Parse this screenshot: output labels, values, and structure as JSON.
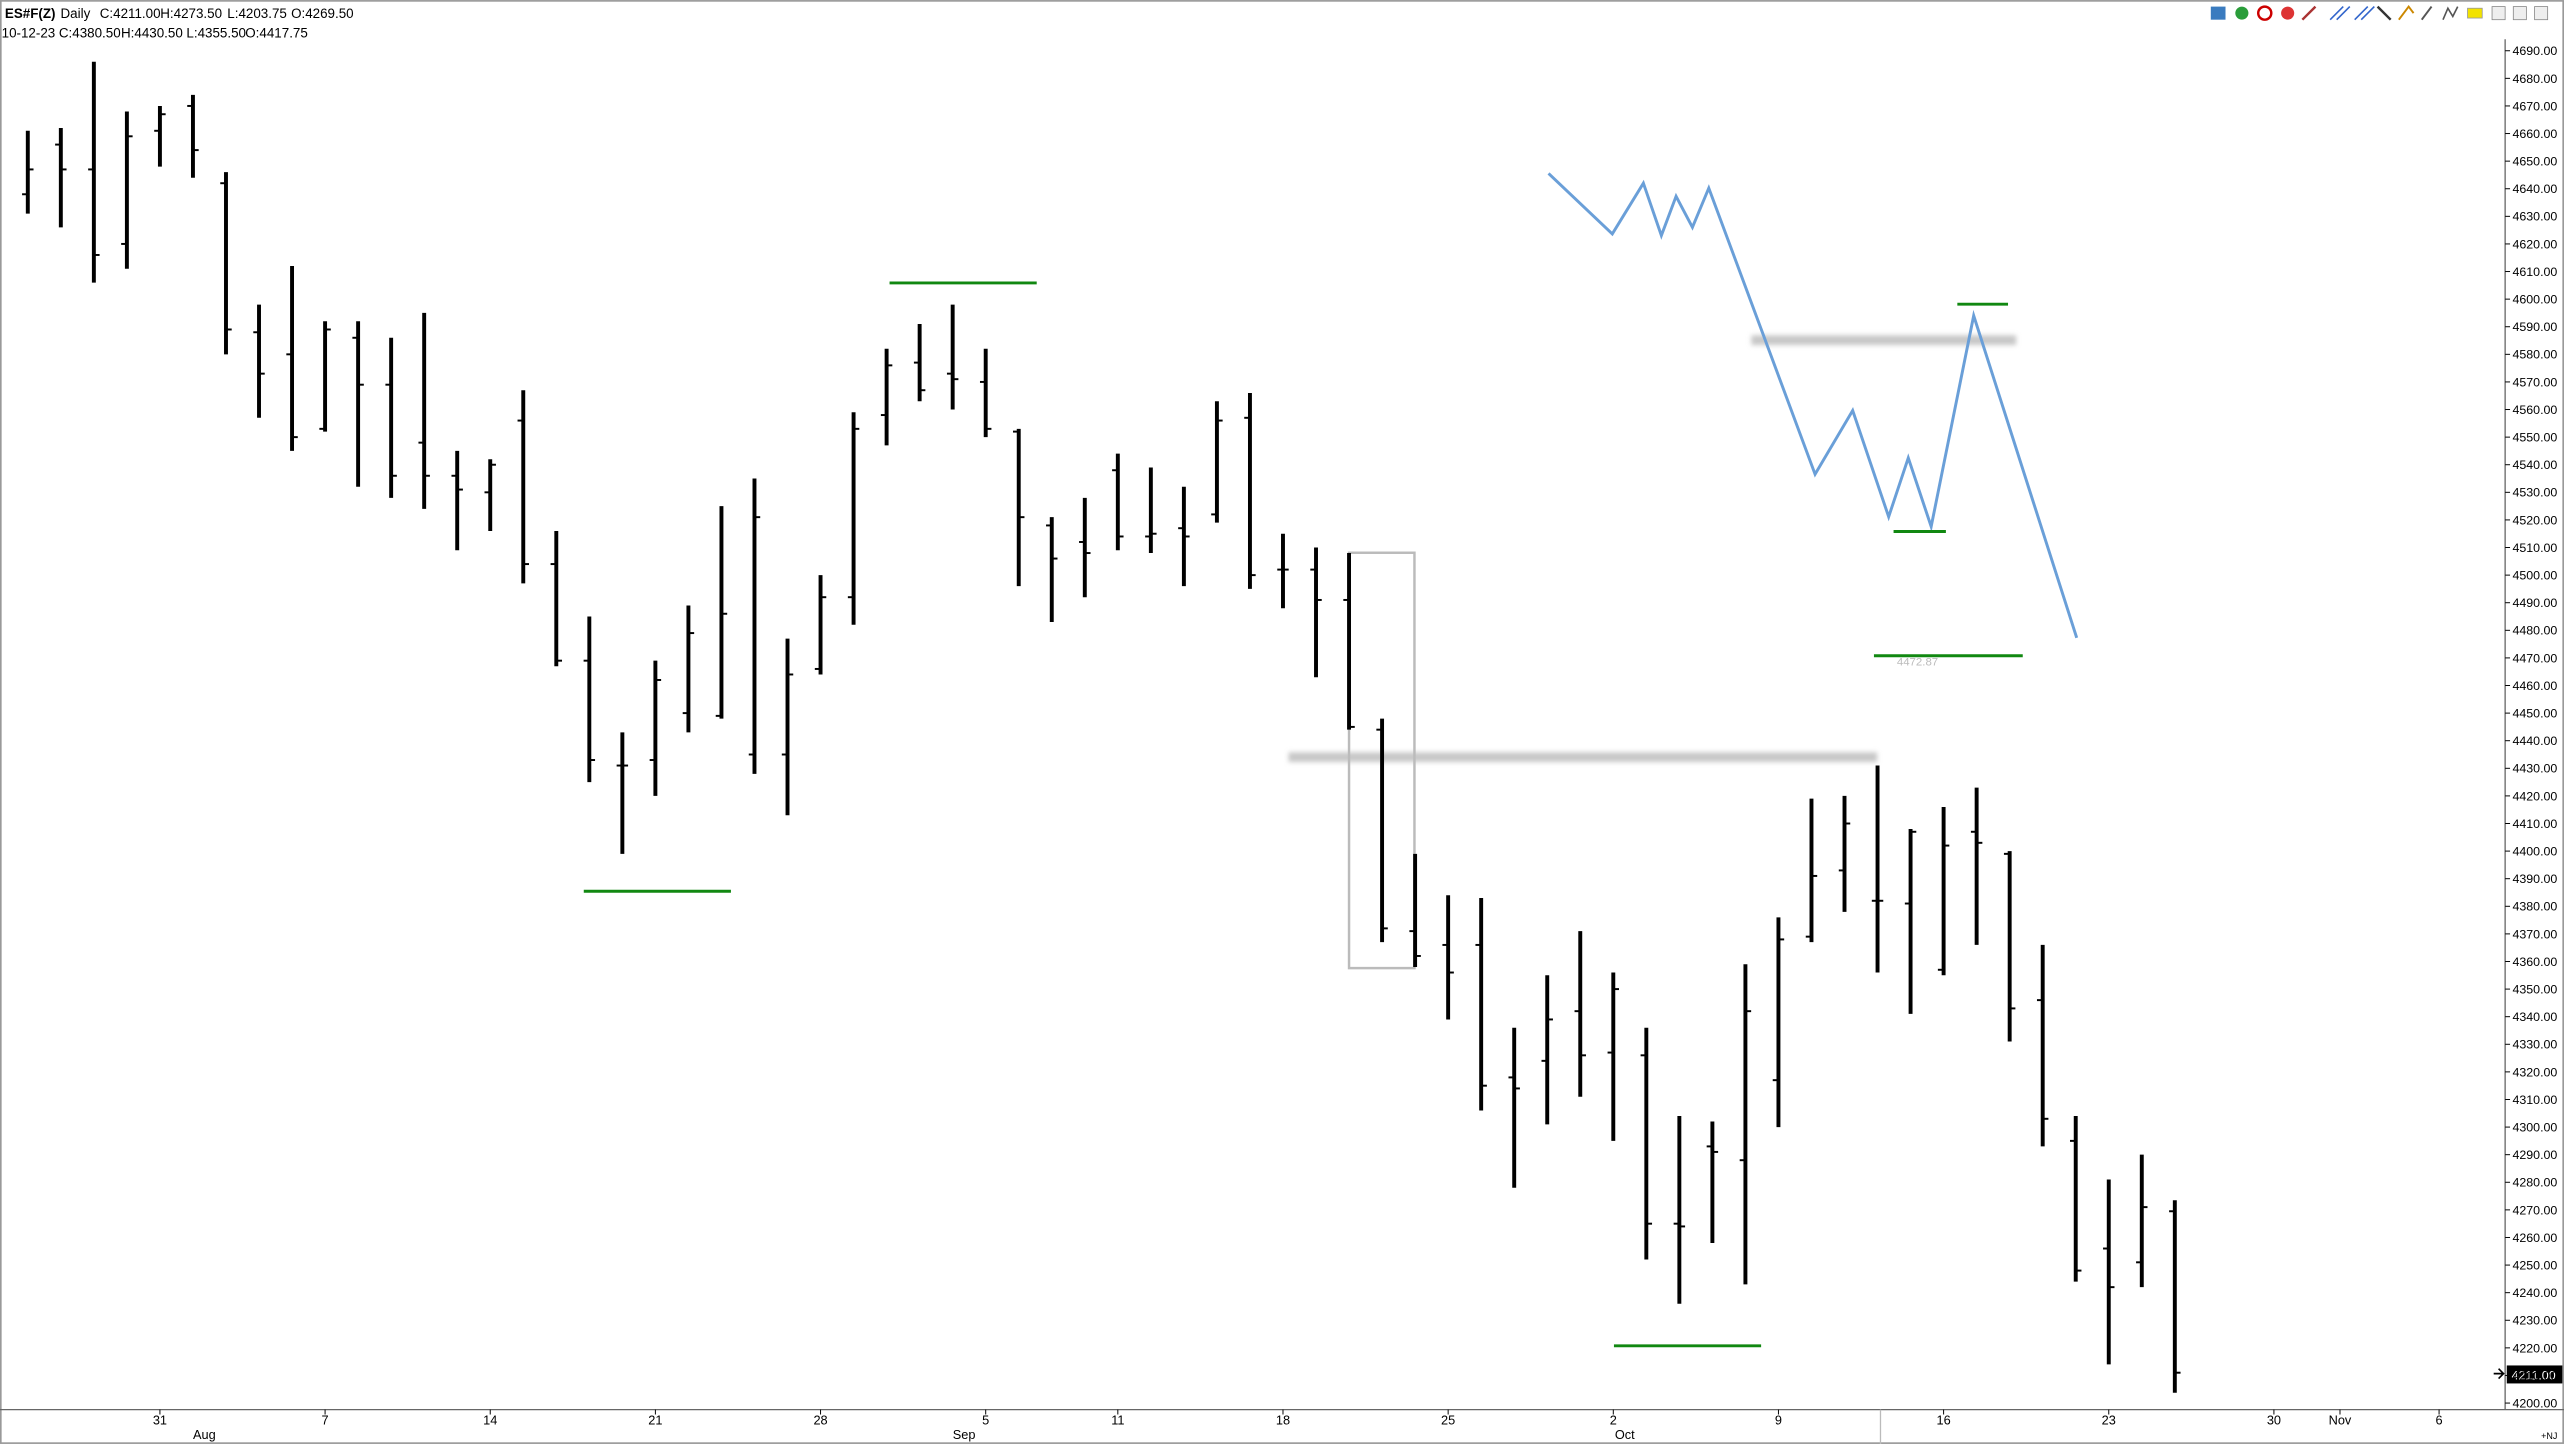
{
  "header": {
    "symbol": "ES#F(Z)",
    "interval": "Daily",
    "line1": [
      "C:4211.00",
      "H:4273.50",
      "L:4203.75",
      "O:4269.50"
    ],
    "date": "10-12-23",
    "line2": [
      "C:4380.50",
      "H:4430.50",
      "L:4355.50",
      "O:4417.75"
    ]
  },
  "chart_data": {
    "type": "ohlc",
    "categories": [
      null,
      null,
      null,
      null,
      "31",
      null,
      null,
      null,
      null,
      "7",
      null,
      null,
      null,
      null,
      "14",
      null,
      null,
      null,
      null,
      "21",
      null,
      null,
      null,
      null,
      "28",
      null,
      null,
      null,
      null,
      "5",
      null,
      null,
      null,
      "11",
      null,
      null,
      null,
      null,
      "18",
      null,
      null,
      null,
      null,
      "25",
      null,
      null,
      null,
      null,
      "2",
      null,
      null,
      null,
      null,
      "9",
      null,
      null,
      null,
      null,
      "16",
      null,
      null,
      null,
      null,
      "23",
      null,
      null,
      null,
      null,
      "30",
      null,
      "Nov",
      null,
      null,
      "6"
    ],
    "month_labels": [
      null,
      null,
      null,
      null,
      null,
      "Aug",
      null,
      null,
      null,
      null,
      null,
      null,
      null,
      null,
      null,
      null,
      null,
      null,
      null,
      null,
      null,
      null,
      null,
      null,
      null,
      null,
      null,
      null,
      "Sep",
      null,
      null,
      null,
      null,
      null,
      null,
      null,
      null,
      null,
      null,
      null,
      null,
      null,
      null,
      null,
      null,
      null,
      null,
      null,
      "Oct",
      null,
      null,
      null,
      null,
      null,
      null,
      null,
      null,
      null,
      null,
      null,
      null,
      null,
      null,
      null,
      null,
      null,
      null,
      null,
      null,
      null,
      null,
      null,
      null,
      null
    ],
    "open": [
      4638,
      4656,
      4647,
      4620,
      4661,
      4670,
      4642,
      4588,
      4580,
      4553,
      4586,
      4569,
      4548,
      4536,
      4530,
      4556,
      4504,
      4469,
      4431,
      4433,
      4450,
      4449,
      4435,
      4435,
      4466,
      4492,
      4558,
      4577,
      4573,
      4570,
      4552,
      4518,
      4512,
      4538,
      4514,
      4517,
      4522,
      4557,
      4502,
      4502,
      4491,
      4444,
      4371,
      4366,
      4366,
      4318,
      4324,
      4342,
      4327,
      4326,
      4265,
      4293,
      4288,
      4317,
      4369,
      4393,
      4382,
      4381,
      4357,
      4407,
      4399,
      4346,
      4295,
      4256,
      4251,
      4269.5,
      null,
      null,
      null,
      null,
      null,
      null,
      null,
      null
    ],
    "high": [
      4661,
      4662,
      4686,
      4668,
      4670,
      4674,
      4646,
      4598,
      4612,
      4592,
      4592,
      4586,
      4595,
      4545,
      4542,
      4567,
      4516,
      4485,
      4443,
      4469,
      4489,
      4525,
      4535,
      4477,
      4500,
      4559,
      4582,
      4591,
      4598,
      4582,
      4553,
      4521,
      4528,
      4544,
      4539,
      4532,
      4563,
      4566,
      4515,
      4510,
      4508,
      4448,
      4399,
      4384,
      4383,
      4336,
      4355,
      4371,
      4356,
      4336,
      4304,
      4302,
      4359,
      4376,
      4419,
      4420,
      4431,
      4408,
      4416,
      4423,
      4400,
      4366,
      4304,
      4281,
      4290,
      4273.5,
      null,
      null,
      null,
      null,
      null,
      null,
      null,
      null
    ],
    "low": [
      4631,
      4626,
      4606,
      4611,
      4648,
      4644,
      4580,
      4557,
      4545,
      4552,
      4532,
      4528,
      4524,
      4509,
      4516,
      4497,
      4467,
      4425,
      4399,
      4420,
      4443,
      4448,
      4428,
      4413,
      4464,
      4482,
      4547,
      4563,
      4560,
      4550,
      4496,
      4483,
      4492,
      4509,
      4508,
      4496,
      4519,
      4495,
      4488,
      4463,
      4444,
      4367,
      4358,
      4339,
      4306,
      4278,
      4301,
      4311,
      4295,
      4252,
      4236,
      4258,
      4243,
      4300,
      4367,
      4378,
      4356,
      4341,
      4355,
      4366,
      4331,
      4293,
      4244,
      4214,
      4242,
      4203.75,
      null,
      null,
      null,
      null,
      null,
      null,
      null,
      null
    ],
    "close": [
      4647,
      4647,
      4616,
      4659,
      4667,
      4654,
      4589,
      4573,
      4550,
      4589,
      4569,
      4536,
      4536,
      4531,
      4540,
      4504,
      4469,
      4433,
      4431,
      4462,
      4479,
      4486,
      4521,
      4464,
      4492,
      4553,
      4576,
      4567,
      4571,
      4553,
      4521,
      4506,
      4508,
      4514,
      4515,
      4514,
      4556,
      4500,
      4502,
      4491,
      4445,
      4372,
      4362,
      4356,
      4315,
      4314,
      4339,
      4326,
      4350,
      4265,
      4264,
      4291,
      4342,
      4368,
      4391,
      4410,
      4382,
      4407,
      4402,
      4403,
      4343,
      4303,
      4248,
      4242,
      4271,
      4211,
      null,
      null,
      null,
      null,
      null,
      null,
      null,
      null
    ],
    "color": "#000000",
    "last_price_label": "4211.00",
    "annotation": "4472.87",
    "corner_label": "+NJ",
    "ylim": [
      4200,
      4690
    ],
    "yticks": [
      {
        "value": 4200,
        "label": "4200.00"
      },
      {
        "value": 4210,
        "label": "4210.00"
      },
      {
        "value": 4220,
        "label": "4220.00"
      },
      {
        "value": 4230,
        "label": "4230.00"
      },
      {
        "value": 4240,
        "label": "4240.00"
      },
      {
        "value": 4250,
        "label": "4250.00"
      },
      {
        "value": 4260,
        "label": "4260.00"
      },
      {
        "value": 4270,
        "label": "4270.00"
      },
      {
        "value": 4280,
        "label": "4280.00"
      },
      {
        "value": 4290,
        "label": "4290.00"
      },
      {
        "value": 4300,
        "label": "4300.00"
      },
      {
        "value": 4310,
        "label": "4310.00"
      },
      {
        "value": 4320,
        "label": "4320.00"
      },
      {
        "value": 4330,
        "label": "4330.00"
      },
      {
        "value": 4340,
        "label": "4340.00"
      },
      {
        "value": 4350,
        "label": "4350.00"
      },
      {
        "value": 4360,
        "label": "4360.00"
      },
      {
        "value": 4370,
        "label": "4370.00"
      },
      {
        "value": 4380,
        "label": "4380.00"
      },
      {
        "value": 4390,
        "label": "4390.00"
      },
      {
        "value": 4400,
        "label": "4400.00"
      },
      {
        "value": 4410,
        "label": "4410.00"
      },
      {
        "value": 4420,
        "label": "4420.00"
      },
      {
        "value": 4430,
        "label": "4430.00"
      },
      {
        "value": 4440,
        "label": "4440.00"
      },
      {
        "value": 4450,
        "label": "4450.00"
      },
      {
        "value": 4460,
        "label": "4460.00"
      },
      {
        "value": 4470,
        "label": "4470.00"
      },
      {
        "value": 4480,
        "label": "4480.00"
      },
      {
        "value": 4490,
        "label": "4490.00"
      },
      {
        "value": 4500,
        "label": "4500.00"
      },
      {
        "value": 4510,
        "label": "4510.00"
      },
      {
        "value": 4520,
        "label": "4520.00"
      },
      {
        "value": 4530,
        "label": "4530.00"
      },
      {
        "value": 4540,
        "label": "4540.00"
      },
      {
        "value": 4550,
        "label": "4550.00"
      },
      {
        "value": 4560,
        "label": "4560.00"
      },
      {
        "value": 4570,
        "label": "4570.00"
      },
      {
        "value": 4580,
        "label": "4580.00"
      },
      {
        "value": 4590,
        "label": "4590.00"
      },
      {
        "value": 4600,
        "label": "4600.00"
      },
      {
        "value": 4610,
        "label": "4610.00"
      },
      {
        "value": 4620,
        "label": "4620.00"
      },
      {
        "value": 4630,
        "label": "4630.00"
      },
      {
        "value": 4640,
        "label": "4640.00"
      },
      {
        "value": 4650,
        "label": "4650.00"
      },
      {
        "value": 4660,
        "label": "4660.00"
      },
      {
        "value": 4670,
        "label": "4670.00"
      },
      {
        "value": 4680,
        "label": "4680.00"
      },
      {
        "value": 4690,
        "label": "4690.00"
      }
    ],
    "grid": false
  }
}
